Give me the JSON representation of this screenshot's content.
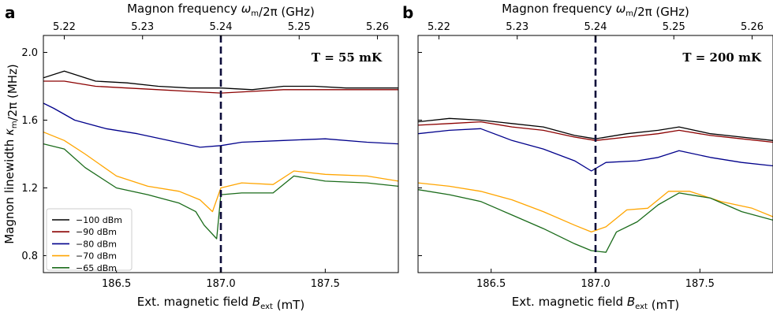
{
  "chart_data": [
    {
      "panel": "a",
      "type": "line",
      "annotation": "T = 55 mK",
      "xlabel": "Ext. magnetic field B_ext (mT)",
      "ylabel": "Magnon linewidth κ_m/2π (MHz)",
      "top_xlabel": "Magnon frequency ω_m/2π (GHz)",
      "xlim": [
        186.15,
        187.85
      ],
      "ylim": [
        0.7,
        2.1
      ],
      "xticks": [
        186.5,
        187.0,
        187.5
      ],
      "yticks": [
        0.8,
        1.2,
        1.6,
        2.0
      ],
      "top_xticks": [
        {
          "label": "5.22",
          "x": 186.25
        },
        {
          "label": "5.23",
          "x": 186.625
        },
        {
          "label": "5.24",
          "x": 187.0
        },
        {
          "label": "5.25",
          "x": 187.375
        },
        {
          "label": "5.26",
          "x": 187.75
        }
      ],
      "vline": 187.0,
      "series": [
        {
          "name": "−100 dBm",
          "color": "#000000",
          "x": [
            186.15,
            186.25,
            186.4,
            186.55,
            186.7,
            186.85,
            187.0,
            187.15,
            187.3,
            187.45,
            187.6,
            187.75,
            187.85
          ],
          "y": [
            1.85,
            1.89,
            1.83,
            1.82,
            1.8,
            1.79,
            1.79,
            1.78,
            1.8,
            1.8,
            1.79,
            1.79,
            1.79
          ]
        },
        {
          "name": "−90 dBm",
          "color": "#8b0000",
          "x": [
            186.15,
            186.25,
            186.4,
            186.55,
            186.7,
            186.85,
            187.0,
            187.15,
            187.3,
            187.45,
            187.6,
            187.75,
            187.85
          ],
          "y": [
            1.83,
            1.83,
            1.8,
            1.79,
            1.78,
            1.77,
            1.76,
            1.77,
            1.78,
            1.78,
            1.78,
            1.78,
            1.78
          ]
        },
        {
          "name": "−80 dBm",
          "color": "#00008b",
          "x": [
            186.15,
            186.2,
            186.3,
            186.45,
            186.6,
            186.75,
            186.9,
            187.0,
            187.1,
            187.3,
            187.5,
            187.7,
            187.85
          ],
          "y": [
            1.7,
            1.67,
            1.6,
            1.55,
            1.52,
            1.48,
            1.44,
            1.45,
            1.47,
            1.48,
            1.49,
            1.47,
            1.46
          ]
        },
        {
          "name": "−70 dBm",
          "color": "#ffa500",
          "x": [
            186.15,
            186.25,
            186.35,
            186.5,
            186.65,
            186.8,
            186.9,
            186.96,
            187.0,
            187.1,
            187.25,
            187.35,
            187.5,
            187.7,
            187.85
          ],
          "y": [
            1.53,
            1.48,
            1.4,
            1.27,
            1.21,
            1.18,
            1.13,
            1.06,
            1.2,
            1.23,
            1.22,
            1.3,
            1.28,
            1.27,
            1.24
          ]
        },
        {
          "name": "−65 dBm",
          "color": "#1a6b1a",
          "x": [
            186.15,
            186.25,
            186.35,
            186.5,
            186.65,
            186.8,
            186.88,
            186.92,
            186.98,
            187.0,
            187.1,
            187.25,
            187.35,
            187.5,
            187.7,
            187.85
          ],
          "y": [
            1.46,
            1.43,
            1.32,
            1.2,
            1.16,
            1.11,
            1.06,
            0.98,
            0.9,
            1.16,
            1.17,
            1.17,
            1.27,
            1.24,
            1.23,
            1.21
          ]
        }
      ]
    },
    {
      "panel": "b",
      "type": "line",
      "annotation": "T = 200 mK",
      "xlabel": "Ext. magnetic field B_ext (mT)",
      "top_xlabel": "Magnon frequency ω_m/2π (GHz)",
      "xlim": [
        186.15,
        187.85
      ],
      "ylim": [
        0.7,
        2.1
      ],
      "xticks": [
        186.5,
        187.0,
        187.5
      ],
      "yticks": [
        0.8,
        1.2,
        1.6,
        2.0
      ],
      "top_xticks": [
        {
          "label": "5.22",
          "x": 186.25
        },
        {
          "label": "5.23",
          "x": 186.625
        },
        {
          "label": "5.24",
          "x": 187.0
        },
        {
          "label": "5.25",
          "x": 187.375
        },
        {
          "label": "5.26",
          "x": 187.75
        }
      ],
      "vline": 187.0,
      "series": [
        {
          "name": "−100 dBm",
          "color": "#000000",
          "x": [
            186.15,
            186.3,
            186.45,
            186.6,
            186.75,
            186.9,
            187.0,
            187.15,
            187.3,
            187.4,
            187.55,
            187.7,
            187.85
          ],
          "y": [
            1.59,
            1.61,
            1.6,
            1.58,
            1.56,
            1.51,
            1.49,
            1.52,
            1.54,
            1.56,
            1.52,
            1.5,
            1.48
          ]
        },
        {
          "name": "−90 dBm",
          "color": "#8b0000",
          "x": [
            186.15,
            186.3,
            186.45,
            186.6,
            186.75,
            186.9,
            187.0,
            187.15,
            187.3,
            187.4,
            187.55,
            187.7,
            187.85
          ],
          "y": [
            1.57,
            1.58,
            1.59,
            1.56,
            1.54,
            1.5,
            1.48,
            1.5,
            1.52,
            1.54,
            1.51,
            1.49,
            1.47
          ]
        },
        {
          "name": "−80 dBm",
          "color": "#00008b",
          "x": [
            186.15,
            186.3,
            186.45,
            186.6,
            186.75,
            186.9,
            186.98,
            187.05,
            187.2,
            187.3,
            187.4,
            187.55,
            187.7,
            187.85
          ],
          "y": [
            1.52,
            1.54,
            1.55,
            1.48,
            1.43,
            1.36,
            1.3,
            1.35,
            1.36,
            1.38,
            1.42,
            1.38,
            1.35,
            1.33
          ]
        },
        {
          "name": "−70 dBm",
          "color": "#ffa500",
          "x": [
            186.15,
            186.3,
            186.45,
            186.6,
            186.75,
            186.9,
            186.98,
            187.05,
            187.15,
            187.25,
            187.35,
            187.45,
            187.6,
            187.75,
            187.85
          ],
          "y": [
            1.23,
            1.21,
            1.18,
            1.13,
            1.06,
            0.98,
            0.94,
            0.97,
            1.07,
            1.08,
            1.18,
            1.18,
            1.12,
            1.08,
            1.03
          ]
        },
        {
          "name": "−65 dBm",
          "color": "#1a6b1a",
          "x": [
            186.15,
            186.3,
            186.45,
            186.6,
            186.75,
            186.9,
            186.98,
            187.05,
            187.1,
            187.2,
            187.3,
            187.4,
            187.55,
            187.7,
            187.85
          ],
          "y": [
            1.19,
            1.16,
            1.12,
            1.04,
            0.96,
            0.87,
            0.83,
            0.82,
            0.94,
            1.0,
            1.1,
            1.17,
            1.14,
            1.06,
            1.01
          ]
        }
      ]
    }
  ]
}
